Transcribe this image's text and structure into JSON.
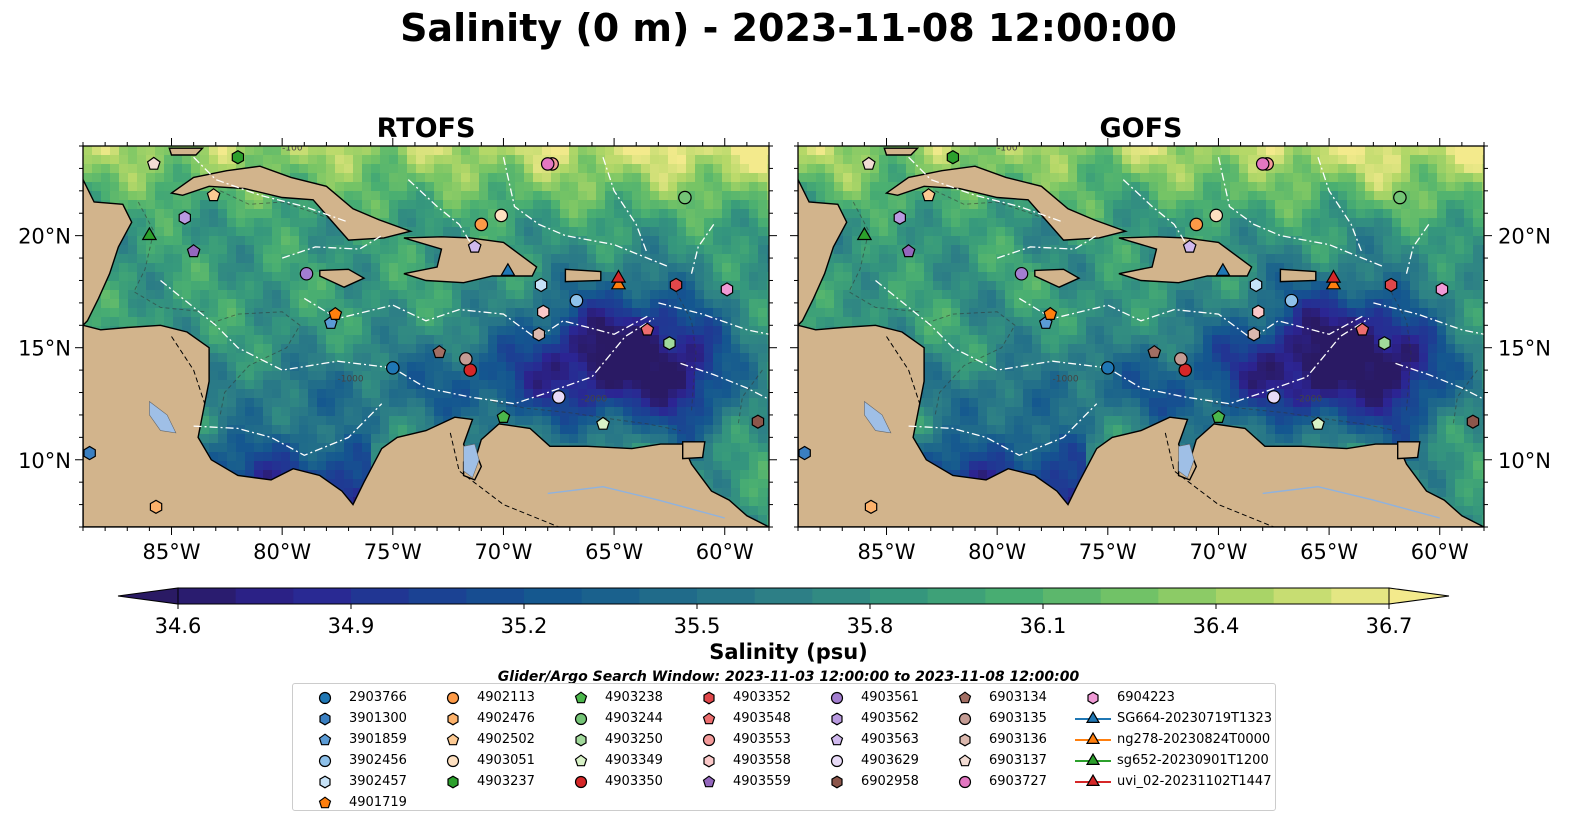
{
  "title": "Salinity (0 m) - 2023-11-08 12:00:00",
  "panels": [
    {
      "title": "RTOFS"
    },
    {
      "title": "GOFS"
    }
  ],
  "map": {
    "lon_range": [
      -89,
      -58
    ],
    "lat_range": [
      7,
      24
    ],
    "lon_ticks": [
      {
        "value": -85,
        "label": "85°W"
      },
      {
        "value": -80,
        "label": "80°W"
      },
      {
        "value": -75,
        "label": "75°W"
      },
      {
        "value": -70,
        "label": "70°W"
      },
      {
        "value": -65,
        "label": "65°W"
      },
      {
        "value": -60,
        "label": "60°W"
      }
    ],
    "lat_ticks": [
      {
        "value": 20,
        "label": "20°N"
      },
      {
        "value": 15,
        "label": "15°N"
      },
      {
        "value": 10,
        "label": "10°N"
      }
    ],
    "contour_labels": [
      "-100",
      "-1000",
      "-2000"
    ],
    "land_color": "#d2b48c",
    "lake_color": "#9fbfe6",
    "eez_color": "#ffffff"
  },
  "colorbar": {
    "label": "Salinity (psu)",
    "min": 34.6,
    "max": 36.7,
    "step": 0.1,
    "tick_labels": [
      "34.6",
      "34.9",
      "35.2",
      "35.5",
      "35.8",
      "36.1",
      "36.4",
      "36.7"
    ],
    "colormap": "haline",
    "extend": "both"
  },
  "search_window": "Glider/Argo Search Window: 2023-11-03 12:00:00 to 2023-11-08 12:00:00",
  "legend": [
    {
      "label": "2903766",
      "marker": "circle",
      "color": "#1f77b4"
    },
    {
      "label": "3901300",
      "marker": "hexagon",
      "color": "#3a7fc1"
    },
    {
      "label": "3901859",
      "marker": "pentagon",
      "color": "#5b9bd5"
    },
    {
      "label": "3902456",
      "marker": "circle",
      "color": "#8ec1ea"
    },
    {
      "label": "3902457",
      "marker": "hexagon",
      "color": "#c6e2f7"
    },
    {
      "label": "4901719",
      "marker": "pentagon",
      "color": "#ff7f0e"
    },
    {
      "label": "4902113",
      "marker": "circle",
      "color": "#fd9a47"
    },
    {
      "label": "4902476",
      "marker": "hexagon",
      "color": "#fdb26b"
    },
    {
      "label": "4902502",
      "marker": "pentagon",
      "color": "#fdca93"
    },
    {
      "label": "4903051",
      "marker": "circle",
      "color": "#fee0c0"
    },
    {
      "label": "4903237",
      "marker": "hexagon",
      "color": "#2ca02c"
    },
    {
      "label": "4903238",
      "marker": "pentagon",
      "color": "#4bb74b"
    },
    {
      "label": "4903244",
      "marker": "circle",
      "color": "#74c476"
    },
    {
      "label": "4903250",
      "marker": "hexagon",
      "color": "#a1d99b"
    },
    {
      "label": "4903349",
      "marker": "pentagon",
      "color": "#d8f2c7"
    },
    {
      "label": "4903350",
      "marker": "circle",
      "color": "#d62728"
    },
    {
      "label": "4903352",
      "marker": "hexagon",
      "color": "#e0474a"
    },
    {
      "label": "4903548",
      "marker": "pentagon",
      "color": "#ec6d6e"
    },
    {
      "label": "4903553",
      "marker": "circle",
      "color": "#f39a9a"
    },
    {
      "label": "4903558",
      "marker": "hexagon",
      "color": "#fbc9c9"
    },
    {
      "label": "4903559",
      "marker": "pentagon",
      "color": "#9467bd"
    },
    {
      "label": "4903561",
      "marker": "circle",
      "color": "#a37ed0"
    },
    {
      "label": "4903562",
      "marker": "hexagon",
      "color": "#b99ae0"
    },
    {
      "label": "4903563",
      "marker": "pentagon",
      "color": "#d0b9ee"
    },
    {
      "label": "4903629",
      "marker": "circle",
      "color": "#e8dbf7"
    },
    {
      "label": "6902958",
      "marker": "hexagon",
      "color": "#8c564b"
    },
    {
      "label": "6903134",
      "marker": "pentagon",
      "color": "#a26e63"
    },
    {
      "label": "6903135",
      "marker": "circle",
      "color": "#c49c94"
    },
    {
      "label": "6903136",
      "marker": "hexagon",
      "color": "#dbb8ae"
    },
    {
      "label": "6903137",
      "marker": "pentagon",
      "color": "#f2dcd4"
    },
    {
      "label": "6903727",
      "marker": "circle",
      "color": "#e377c2"
    },
    {
      "label": "6904223",
      "marker": "hexagon",
      "color": "#f09ad6"
    },
    {
      "label": "SG664-20230719T1323",
      "marker": "triangle-line",
      "color": "#1f77b4"
    },
    {
      "label": "ng278-20230824T0000",
      "marker": "triangle-line",
      "color": "#ff7f0e"
    },
    {
      "label": "sg652-20230901T1200",
      "marker": "triangle-line",
      "color": "#2ca02c"
    },
    {
      "label": "uvi_02-20231102T1447",
      "marker": "triangle-line",
      "color": "#d62728"
    }
  ],
  "observations": [
    {
      "id": "2903766",
      "lon": -75.0,
      "lat": 14.1
    },
    {
      "id": "3901300",
      "lon": -88.7,
      "lat": 10.3
    },
    {
      "id": "3901859",
      "lon": -77.8,
      "lat": 16.1
    },
    {
      "id": "3902456",
      "lon": -66.7,
      "lat": 17.1
    },
    {
      "id": "3902457",
      "lon": -68.3,
      "lat": 17.8
    },
    {
      "id": "4901719",
      "lon": -77.6,
      "lat": 16.5
    },
    {
      "id": "4902113",
      "lon": -71.0,
      "lat": 20.5
    },
    {
      "id": "4902476",
      "lon": -85.7,
      "lat": 7.9
    },
    {
      "id": "4902502",
      "lon": -83.1,
      "lat": 21.8
    },
    {
      "id": "4903051",
      "lon": -70.1,
      "lat": 20.9
    },
    {
      "id": "4903237",
      "lon": -82.0,
      "lat": 23.5
    },
    {
      "id": "4903238",
      "lon": -70.0,
      "lat": 11.9
    },
    {
      "id": "4903244",
      "lon": -61.8,
      "lat": 21.7
    },
    {
      "id": "4903250",
      "lon": -62.5,
      "lat": 15.2
    },
    {
      "id": "4903349",
      "lon": -65.5,
      "lat": 11.6
    },
    {
      "id": "4903350",
      "lon": -71.5,
      "lat": 14.0
    },
    {
      "id": "4903352",
      "lon": -62.2,
      "lat": 17.8
    },
    {
      "id": "4903548",
      "lon": -63.5,
      "lat": 15.8
    },
    {
      "id": "4903553",
      "lon": -67.8,
      "lat": 23.2
    },
    {
      "id": "4903558",
      "lon": -68.2,
      "lat": 16.6
    },
    {
      "id": "4903559",
      "lon": -84.0,
      "lat": 19.3
    },
    {
      "id": "4903561",
      "lon": -78.9,
      "lat": 18.3
    },
    {
      "id": "4903562",
      "lon": -84.4,
      "lat": 20.8
    },
    {
      "id": "4903563",
      "lon": -71.3,
      "lat": 19.5
    },
    {
      "id": "4903629",
      "lon": -67.5,
      "lat": 12.8
    },
    {
      "id": "6902958",
      "lon": -58.5,
      "lat": 11.7
    },
    {
      "id": "6903134",
      "lon": -72.9,
      "lat": 14.8
    },
    {
      "id": "6903135",
      "lon": -71.7,
      "lat": 14.5
    },
    {
      "id": "6903136",
      "lon": -68.4,
      "lat": 15.6
    },
    {
      "id": "6903137",
      "lon": -85.8,
      "lat": 23.2
    },
    {
      "id": "6903727",
      "lon": -68.0,
      "lat": 23.2
    },
    {
      "id": "6904223",
      "lon": -59.9,
      "lat": 17.6
    },
    {
      "id": "SG664-20230719T1323",
      "lon": -69.8,
      "lat": 18.4
    },
    {
      "id": "ng278-20230824T0000",
      "lon": -64.8,
      "lat": 17.8
    },
    {
      "id": "sg652-20230901T1200",
      "lon": -86.0,
      "lat": 20.0
    },
    {
      "id": "uvi_02-20231102T1447",
      "lon": -64.8,
      "lat": 18.1
    }
  ]
}
